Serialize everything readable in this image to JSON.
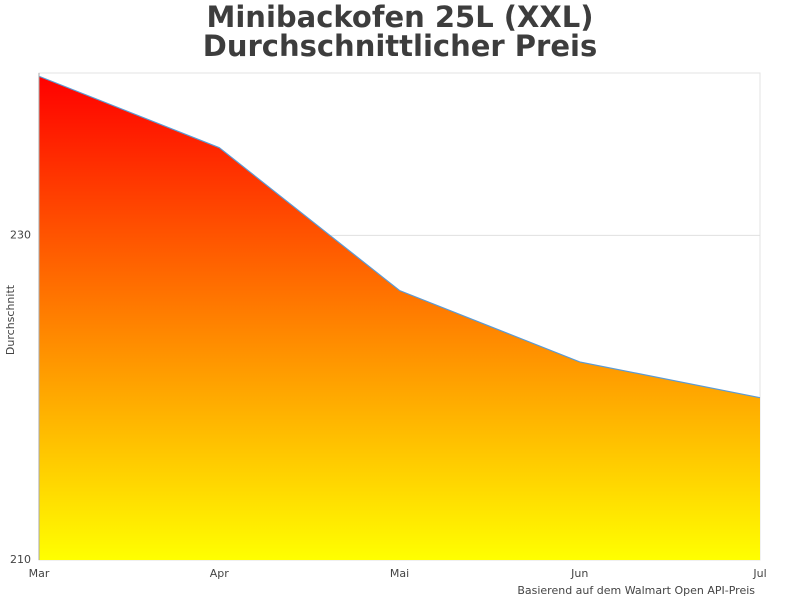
{
  "chart_data": {
    "type": "area",
    "title": "Minibackofen 25L (XXL)",
    "subtitle": "Durchschnittlicher Preis",
    "y_label": "Durchschnitt",
    "note": "Basierend auf dem Walmart Open API-Preis",
    "categories": [
      "Mar",
      "Apr",
      "Mai",
      "Jun",
      "Jul"
    ],
    "values": [
      239.8,
      235.4,
      226.6,
      222.2,
      220.0
    ],
    "line_color": "#5b9bd5",
    "gradient": [
      "#ff0000",
      "#ffff00"
    ],
    "ylim": [
      210,
      240
    ],
    "yticks": [
      210,
      230
    ],
    "grid": true
  }
}
